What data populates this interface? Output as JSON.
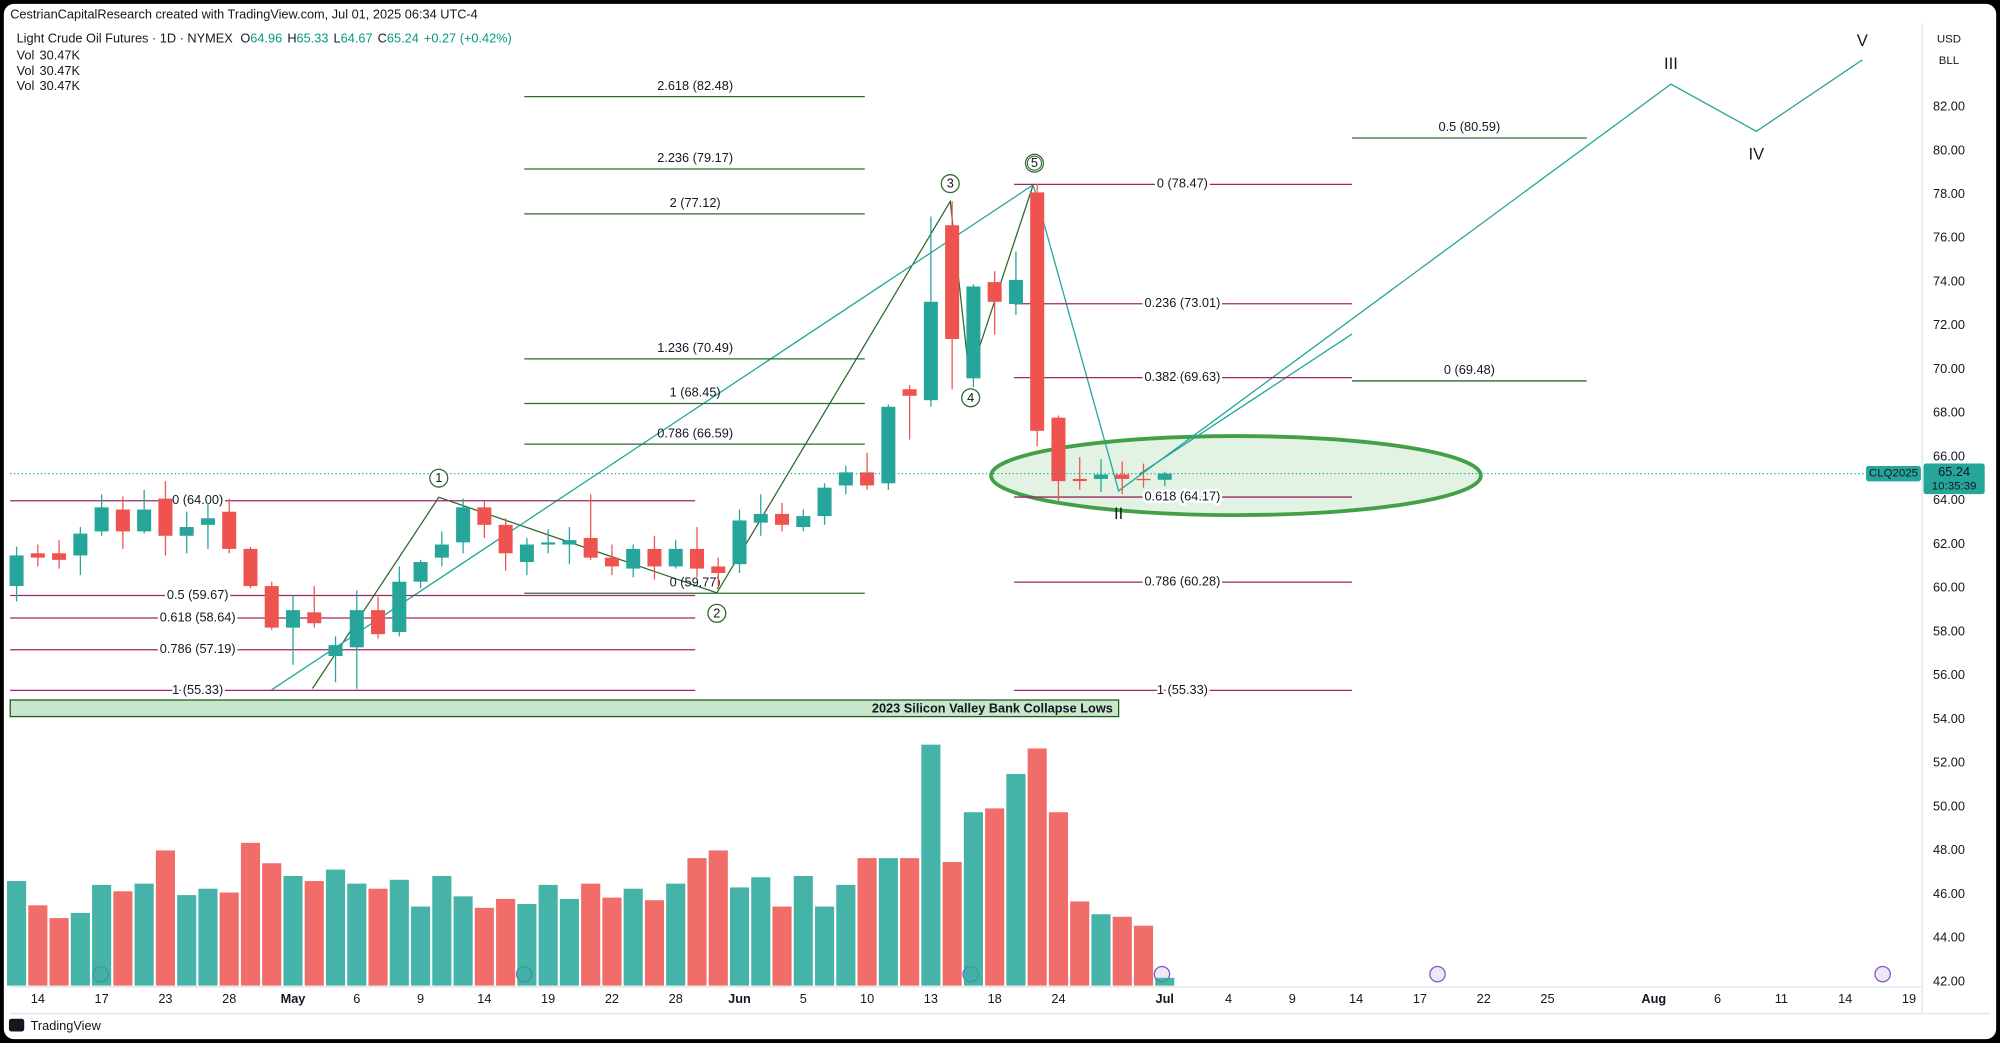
{
  "header": {
    "attribution": "CestrianCapitalResearch created with TradingView.com, Jul 01, 2025 06:34 UTC-4",
    "symbol": "Light Crude Oil Futures · 1D · NYMEX",
    "fields": [
      "O",
      "H",
      "L",
      "C"
    ],
    "change": "+0.27 (+0.42%)",
    "brand": "TradingView"
  },
  "chart_data": {
    "type": "candlestick",
    "up_color": "#26a69a",
    "down_color": "#ef5350",
    "categories": [
      "2025-04-11",
      "2025-04-14",
      "2025-04-15",
      "2025-04-16",
      "2025-04-17",
      "2025-04-21",
      "2025-04-22",
      "2025-04-23",
      "2025-04-24",
      "2025-04-25",
      "2025-04-28",
      "2025-04-29",
      "2025-04-30",
      "2025-05-01",
      "2025-05-02",
      "2025-05-05",
      "2025-05-06",
      "2025-05-07",
      "2025-05-08",
      "2025-05-09",
      "2025-05-12",
      "2025-05-13",
      "2025-05-14",
      "2025-05-15",
      "2025-05-16",
      "2025-05-19",
      "2025-05-20",
      "2025-05-21",
      "2025-05-22",
      "2025-05-23",
      "2025-05-27",
      "2025-05-28",
      "2025-05-29",
      "2025-05-30",
      "2025-06-02",
      "2025-06-03",
      "2025-06-04",
      "2025-06-05",
      "2025-06-06",
      "2025-06-09",
      "2025-06-10",
      "2025-06-11",
      "2025-06-12",
      "2025-06-13",
      "2025-06-16",
      "2025-06-17",
      "2025-06-18",
      "2025-06-20",
      "2025-06-23",
      "2025-06-24",
      "2025-06-25",
      "2025-06-26",
      "2025-06-27",
      "2025-06-30",
      "2025-07-01"
    ],
    "open": [
      60.1,
      61.6,
      61.6,
      61.5,
      62.6,
      63.6,
      62.6,
      64.1,
      62.4,
      62.9,
      63.5,
      61.8,
      60.1,
      58.2,
      58.9,
      56.9,
      57.3,
      59.0,
      58.0,
      60.3,
      61.4,
      62.1,
      63.7,
      62.9,
      61.2,
      62.0,
      62.0,
      62.3,
      61.4,
      60.9,
      61.8,
      61.0,
      61.8,
      61.0,
      61.1,
      63.0,
      63.4,
      62.8,
      63.3,
      64.7,
      65.3,
      64.8,
      69.1,
      68.6,
      76.6,
      69.6,
      74.0,
      73.0,
      78.1,
      67.8,
      65.0,
      65.0,
      65.2,
      65.0,
      64.96
    ],
    "high": [
      61.9,
      62.0,
      62.2,
      62.8,
      64.3,
      64.2,
      64.5,
      64.9,
      63.5,
      63.9,
      64.1,
      61.9,
      60.3,
      59.7,
      60.1,
      57.8,
      59.9,
      59.6,
      61.0,
      61.3,
      62.6,
      64.1,
      64.0,
      63.2,
      62.3,
      62.7,
      62.8,
      64.3,
      62.0,
      62.0,
      62.4,
      62.2,
      62.8,
      61.4,
      63.6,
      64.3,
      63.9,
      63.6,
      64.8,
      65.6,
      66.2,
      68.4,
      69.3,
      77.0,
      77.7,
      73.9,
      74.5,
      75.4,
      78.5,
      67.9,
      66.0,
      65.9,
      65.8,
      65.7,
      65.33
    ],
    "low": [
      59.4,
      61.0,
      60.9,
      60.6,
      62.4,
      61.8,
      62.5,
      61.5,
      61.6,
      61.8,
      61.6,
      60.0,
      58.1,
      56.5,
      58.2,
      55.7,
      55.4,
      57.7,
      57.8,
      60.0,
      61.0,
      61.6,
      62.3,
      60.8,
      60.6,
      61.6,
      61.1,
      61.3,
      60.6,
      60.5,
      60.4,
      60.9,
      60.5,
      60.0,
      60.7,
      62.4,
      62.6,
      62.6,
      62.9,
      64.3,
      64.5,
      64.5,
      66.8,
      68.3,
      69.1,
      69.2,
      71.6,
      72.5,
      66.5,
      64.0,
      64.5,
      64.4,
      64.3,
      64.6,
      64.67
    ],
    "close": [
      61.5,
      61.4,
      61.3,
      62.5,
      63.7,
      62.6,
      63.6,
      62.4,
      62.8,
      63.2,
      61.8,
      60.1,
      58.2,
      59.0,
      58.4,
      57.4,
      59.0,
      57.9,
      60.3,
      61.2,
      62.0,
      63.7,
      62.9,
      61.6,
      62.0,
      62.1,
      62.2,
      61.4,
      61.0,
      61.8,
      61.0,
      61.8,
      60.9,
      60.7,
      63.1,
      63.4,
      62.9,
      63.3,
      64.6,
      65.3,
      64.7,
      68.3,
      68.8,
      73.1,
      71.4,
      73.8,
      73.1,
      74.1,
      67.2,
      64.9,
      64.9,
      65.2,
      65.0,
      64.97,
      65.24
    ],
    "volume": [
      410,
      315,
      265,
      285,
      395,
      370,
      400,
      530,
      355,
      380,
      365,
      560,
      480,
      430,
      410,
      455,
      400,
      380,
      415,
      310,
      430,
      350,
      305,
      340,
      320,
      395,
      340,
      400,
      345,
      380,
      335,
      400,
      500,
      530,
      385,
      425,
      310,
      430,
      310,
      395,
      500,
      500,
      500,
      945,
      485,
      680,
      695,
      830,
      930,
      680,
      330,
      280,
      270,
      235,
      30.47
    ],
    "volume_name": "Vol",
    "volume_label": "30.47K",
    "vlim": [
      0,
      1300
    ],
    "ylim": [
      41.83,
      85.85
    ],
    "yticks": [
      {
        "value": 42,
        "label": "42.00"
      },
      {
        "value": 44,
        "label": "44.00"
      },
      {
        "value": 46,
        "label": "46.00"
      },
      {
        "value": 48,
        "label": "48.00"
      },
      {
        "value": 50,
        "label": "50.00"
      },
      {
        "value": 52,
        "label": "52.00"
      },
      {
        "value": 54,
        "label": "54.00"
      },
      {
        "value": 56,
        "label": "56.00"
      },
      {
        "value": 58,
        "label": "58.00"
      },
      {
        "value": 60,
        "label": "60.00"
      },
      {
        "value": 62,
        "label": "62.00"
      },
      {
        "value": 64,
        "label": "64.00"
      },
      {
        "value": 66,
        "label": "66.00"
      },
      {
        "value": 68,
        "label": "68.00"
      },
      {
        "value": 70,
        "label": "70.00"
      },
      {
        "value": 72,
        "label": "72.00"
      },
      {
        "value": 74,
        "label": "74.00"
      },
      {
        "value": 76,
        "label": "76.00"
      },
      {
        "value": 78,
        "label": "78.00"
      },
      {
        "value": 80,
        "label": "80.00"
      },
      {
        "value": 82,
        "label": "82.00"
      }
    ],
    "xticks": [
      {
        "value": "2025-04-14",
        "label": "14"
      },
      {
        "value": "2025-04-17",
        "label": "17"
      },
      {
        "value": "2025-04-23",
        "label": "23"
      },
      {
        "value": "2025-04-28",
        "label": "28"
      },
      {
        "value": "2025-05-01",
        "label": "May"
      },
      {
        "value": "2025-05-06",
        "label": "6"
      },
      {
        "value": "2025-05-09",
        "label": "9"
      },
      {
        "value": "2025-05-14",
        "label": "14"
      },
      {
        "value": "2025-05-19",
        "label": "19"
      },
      {
        "value": "2025-05-22",
        "label": "22"
      },
      {
        "value": "2025-05-28",
        "label": "28"
      },
      {
        "value": "2025-06-02",
        "label": "Jun"
      },
      {
        "value": "2025-06-05",
        "label": "5"
      },
      {
        "value": "2025-06-10",
        "label": "10"
      },
      {
        "value": "2025-06-13",
        "label": "13"
      },
      {
        "value": "2025-06-18",
        "label": "18"
      },
      {
        "value": "2025-06-24",
        "label": "24"
      },
      {
        "value": "2025-07-01",
        "label": "Jul"
      },
      {
        "value": "2025-07-04",
        "label": "4"
      },
      {
        "value": "2025-07-09",
        "label": "9"
      },
      {
        "value": "2025-07-14",
        "label": "14"
      },
      {
        "value": "2025-07-17",
        "label": "17"
      },
      {
        "value": "2025-07-22",
        "label": "22"
      },
      {
        "value": "2025-07-25",
        "label": "25"
      },
      {
        "value": "2025-08-01",
        "label": "Aug"
      },
      {
        "value": "2025-08-06",
        "label": "6"
      },
      {
        "value": "2025-08-11",
        "label": "11"
      },
      {
        "value": "2025-08-14",
        "label": "14"
      },
      {
        "value": "2025-08-19",
        "label": "19"
      }
    ],
    "currency": "USD",
    "unit": "BLL",
    "price_tag": {
      "symbol": "CLQ2025",
      "countdown": "10:35:39"
    },
    "fibs": [
      {
        "color": "#9c2762",
        "levels": [
          {
            "label": "0 (64.00)",
            "price": 64.0
          },
          {
            "label": "0.5 (59.67)",
            "price": 59.67
          },
          {
            "label": "0.618 (58.64)",
            "price": 58.64
          },
          {
            "label": "0.786 (57.19)",
            "price": 57.19
          },
          {
            "label": "1 (55.33)",
            "price": 55.33
          }
        ]
      },
      {
        "color": "#2e6b31",
        "levels": [
          {
            "label": "2.618 (82.48)",
            "price": 82.48
          },
          {
            "label": "2.236 (79.17)",
            "price": 79.17
          },
          {
            "label": "2 (77.12)",
            "price": 77.12
          },
          {
            "label": "1.236 (70.49)",
            "price": 70.49
          },
          {
            "label": "1 (68.45)",
            "price": 68.45
          },
          {
            "label": "0.786 (66.59)",
            "price": 66.59
          },
          {
            "label": "0 (59.77)",
            "price": 59.77
          }
        ]
      },
      {
        "color": "#9c2762",
        "levels": [
          {
            "label": "0 (78.47)",
            "price": 78.47
          },
          {
            "label": "0.236 (73.01)",
            "price": 73.01
          },
          {
            "label": "0.382 (69.63)",
            "price": 69.63
          },
          {
            "label": "0.618 (64.17)",
            "price": 64.17
          },
          {
            "label": "0.786 (60.28)",
            "price": 60.28
          },
          {
            "label": "1 (55.33)",
            "price": 55.33
          }
        ]
      },
      {
        "color": "#2e6b31",
        "levels": [
          {
            "label": "0.5 (80.59)",
            "price": 80.59
          },
          {
            "label": "0 (69.48)",
            "price": 69.48
          }
        ]
      }
    ],
    "waves": [
      "1",
      "2",
      "3",
      "4",
      "5",
      "II",
      "III",
      "IV",
      "V"
    ],
    "zone_label": "2023 Silicon Valley Bank Collapse Lows"
  }
}
